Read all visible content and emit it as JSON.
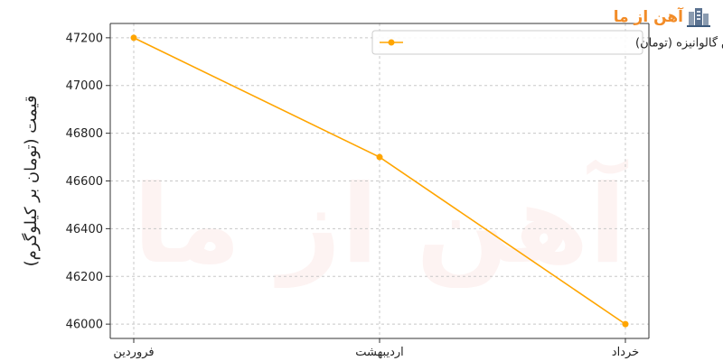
{
  "brand": {
    "logo_text": "آهن از ما",
    "watermark_text": "آهن از ما",
    "logo_color": "#f28c28"
  },
  "chart_data": {
    "type": "line",
    "title": "",
    "xlabel": "",
    "ylabel": "قیمت (تومان بر کیلوگرم)",
    "categories": [
      "فروردین",
      "اردیبهشت",
      "خرداد"
    ],
    "series": [
      {
        "name": "پیش بینی قیمت ورق گالوانیزه (تومان)",
        "values": [
          47200,
          46700,
          46000
        ],
        "color": "#ffa500"
      }
    ],
    "yticks": [
      46000,
      46200,
      46400,
      46600,
      46800,
      47000,
      47200
    ],
    "ylim": [
      45940,
      47260
    ],
    "grid": true,
    "legend": "top-right"
  }
}
